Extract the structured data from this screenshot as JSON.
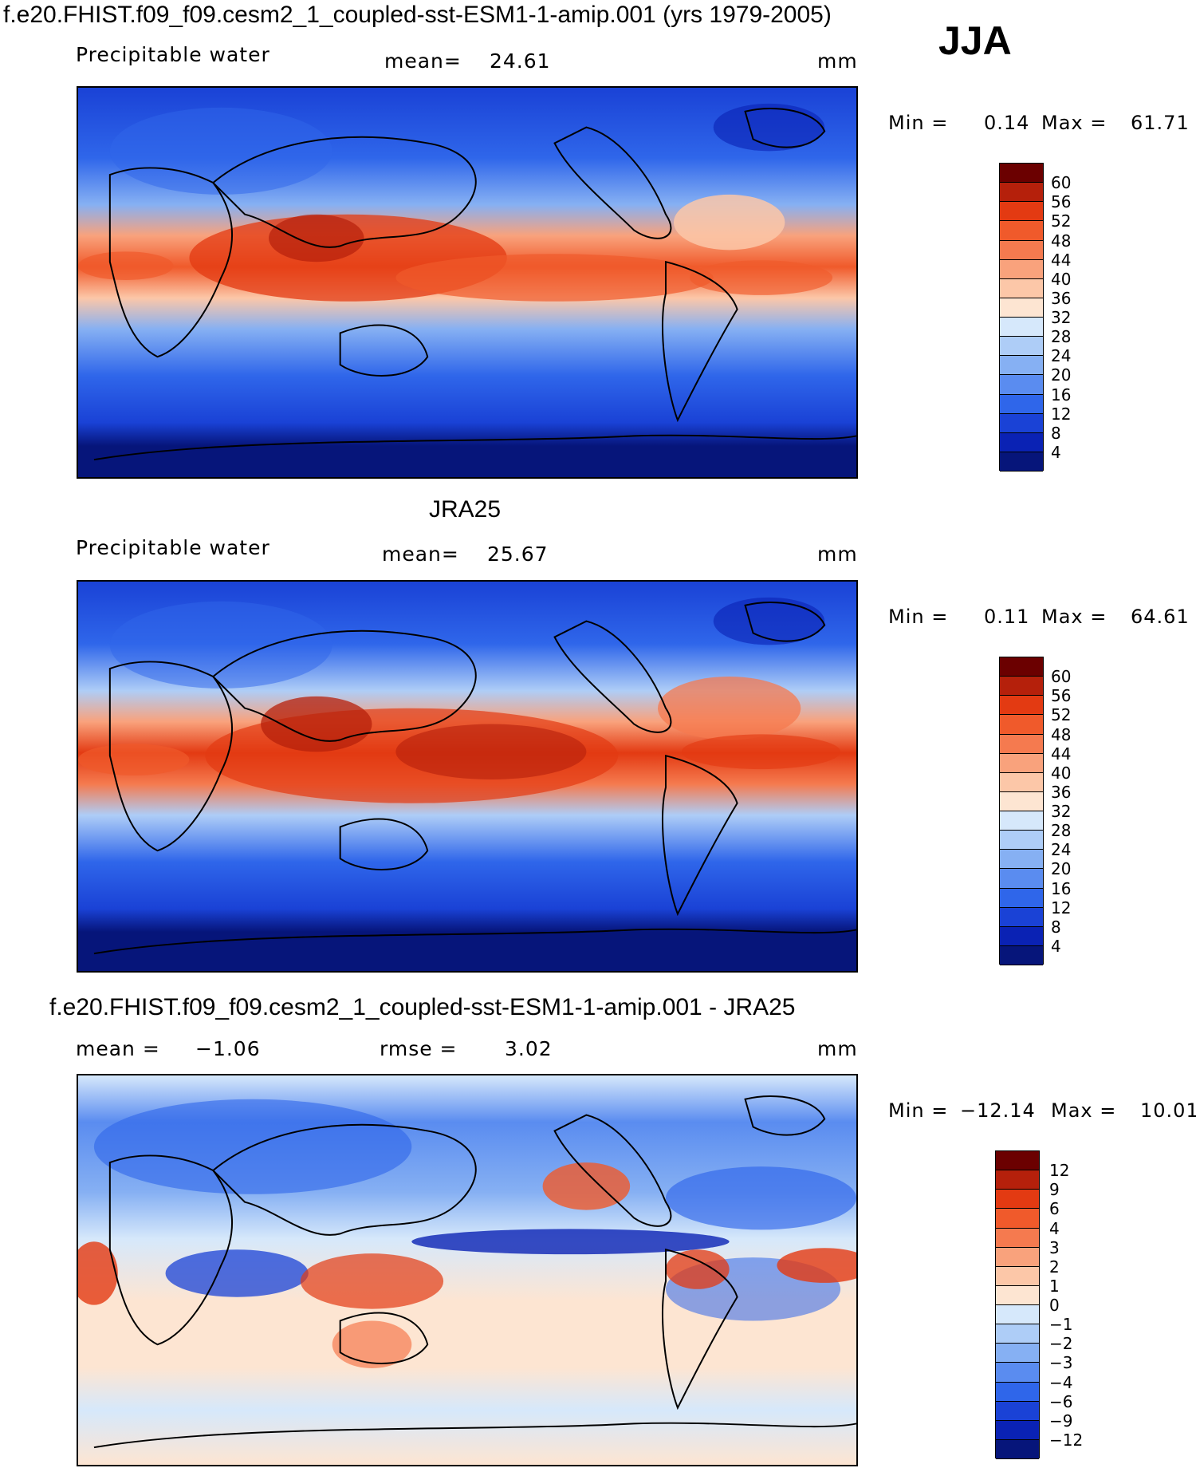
{
  "figure": {
    "title": "f.e20.FHIST.f09_f09.cesm2_1_coupled-sst-ESM1-1-amip.001 (yrs 1979-2005)",
    "season": "JJA",
    "colors": {
      "ocean_deep": "#0a1f8f",
      "cold": "#1f56e6",
      "cool": "#6f9ef5",
      "neutral_blue": "#d6e8fb",
      "neutral_warm": "#fde5d2",
      "warm": "#f7a27c",
      "hot": "#e8411a",
      "very_hot": "#b5200b"
    }
  },
  "panel1": {
    "variable": "Precipitable water",
    "mean_label": "mean=",
    "mean_value": "24.61",
    "units": "mm",
    "min_label": "Min =",
    "min_value": "0.14",
    "max_label": "Max =",
    "max_value": "61.71",
    "levels": [
      "60",
      "56",
      "52",
      "48",
      "44",
      "40",
      "36",
      "32",
      "28",
      "24",
      "20",
      "16",
      "12",
      "8",
      "4"
    ]
  },
  "panel2": {
    "dataset": "JRA25",
    "variable": "Precipitable water",
    "mean_label": "mean=",
    "mean_value": "25.67",
    "units": "mm",
    "min_label": "Min =",
    "min_value": "0.11",
    "max_label": "Max =",
    "max_value": "64.61",
    "levels": [
      "60",
      "56",
      "52",
      "48",
      "44",
      "40",
      "36",
      "32",
      "28",
      "24",
      "20",
      "16",
      "12",
      "8",
      "4"
    ]
  },
  "panel3": {
    "title": "f.e20.FHIST.f09_f09.cesm2_1_coupled-sst-ESM1-1-amip.001 - JRA25",
    "mean_label": "mean =",
    "mean_value": "−1.06",
    "rmse_label": "rmse =",
    "rmse_value": "3.02",
    "units": "mm",
    "min_label": "Min =",
    "min_value": "−12.14",
    "max_label": "Max =",
    "max_value": "10.01",
    "levels": [
      "12",
      "9",
      "6",
      "4",
      "3",
      "2",
      "1",
      "0",
      "−1",
      "−2",
      "−3",
      "−4",
      "−6",
      "−9",
      "−12"
    ]
  },
  "colorbar_abs": [
    "#6b0000",
    "#b5200b",
    "#e33a12",
    "#f05a2b",
    "#f57a4f",
    "#f9a27c",
    "#fcc7a8",
    "#fde5d2",
    "#d6e8fb",
    "#aecdf7",
    "#86b0f3",
    "#5a8cf0",
    "#2f66ea",
    "#1a42d6",
    "#0a22b4",
    "#06157a"
  ],
  "colorbar_diff": [
    "#6b0000",
    "#b5200b",
    "#e33a12",
    "#f05a2b",
    "#f57a4f",
    "#f9a27c",
    "#fcc7a8",
    "#fde5d2",
    "#d6e8fb",
    "#aecdf7",
    "#86b0f3",
    "#5a8cf0",
    "#2f66ea",
    "#1a42d6",
    "#0a22b4",
    "#06157a"
  ]
}
